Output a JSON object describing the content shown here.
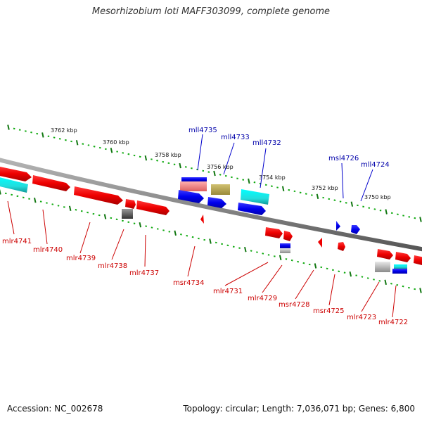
{
  "title": "Mesorhizobium loti MAFF303099, complete genome",
  "footer": {
    "accession": "Accession: NC_002678",
    "summary": "Topology: circular; Length: 7,036,071 bp; Genes: 6,800"
  },
  "colors": {
    "backbone": "#808080",
    "tick_major": "#117711",
    "tick_minor": "#11aa11",
    "forward_label": "#0000aa",
    "reverse_label": "#cc0000",
    "label_line_forward": "#0000cc",
    "label_line_reverse": "#cc0000"
  },
  "scale_labels": [
    "3762 kbp",
    "3760 kbp",
    "3758 kbp",
    "3756 kbp",
    "3754 kbp",
    "3752 kbp",
    "3750 kbp"
  ],
  "forward_genes": [
    {
      "name": "mll4735"
    },
    {
      "name": "mll4733"
    },
    {
      "name": "mll4732"
    },
    {
      "name": "msl4726"
    },
    {
      "name": "mll4724"
    }
  ],
  "reverse_genes": [
    {
      "name": "mlr4741"
    },
    {
      "name": "mlr4740"
    },
    {
      "name": "mlr4739"
    },
    {
      "name": "mlr4738"
    },
    {
      "name": "mlr4737"
    },
    {
      "name": "msr4734"
    },
    {
      "name": "mlr4731"
    },
    {
      "name": "mlr4729"
    },
    {
      "name": "msr4728"
    },
    {
      "name": "msr4725"
    },
    {
      "name": "mlr4723"
    },
    {
      "name": "mlr4722"
    }
  ]
}
